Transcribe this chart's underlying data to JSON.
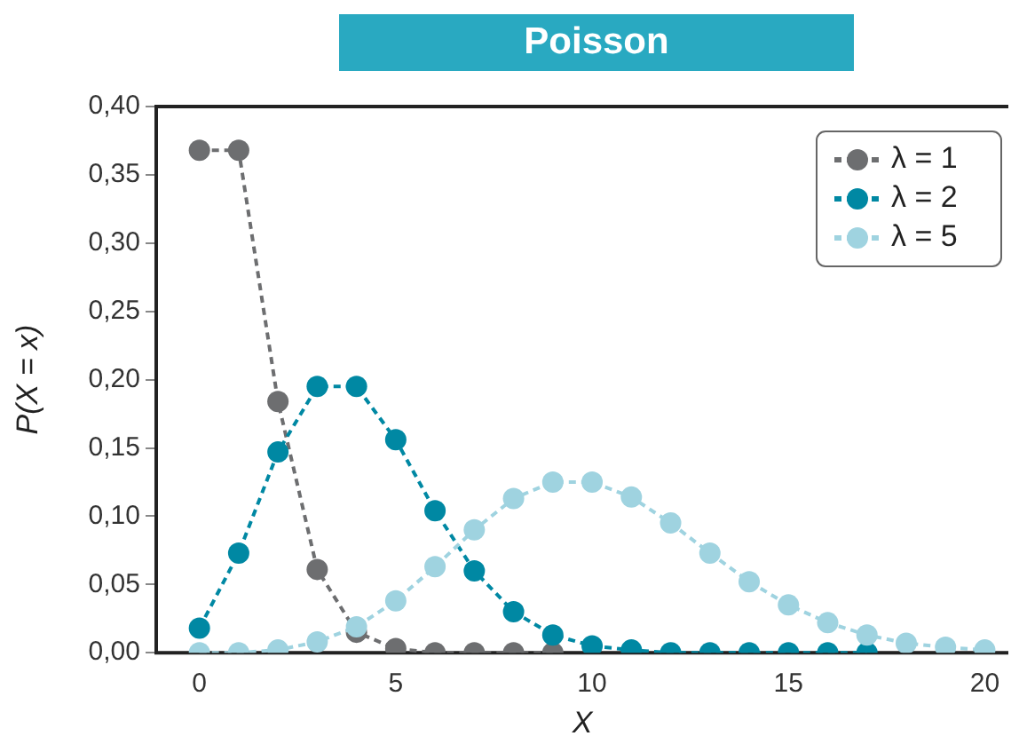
{
  "chart_data": {
    "type": "line",
    "title": "Poisson",
    "xlabel": "X",
    "ylabel": "P(X = x)",
    "xlim": [
      -1.1,
      20.6
    ],
    "xticks": [
      0,
      5,
      10,
      15,
      20
    ],
    "ylim": [
      0,
      0.4
    ],
    "yticks": [
      {
        "value": 0,
        "label": "0,00"
      },
      {
        "value": 0.05,
        "label": "0,05"
      },
      {
        "value": 0.1,
        "label": "0,10"
      },
      {
        "value": 0.15,
        "label": "0,15"
      },
      {
        "value": 0.2,
        "label": "0,20"
      },
      {
        "value": 0.25,
        "label": "0,25"
      },
      {
        "value": 0.3,
        "label": "0,30"
      },
      {
        "value": 0.35,
        "label": "0,35"
      },
      {
        "value": 0.4,
        "label": "0,40"
      }
    ],
    "marker": "circle",
    "line_style": "dashed",
    "legend": "top right",
    "grid": false,
    "series": [
      {
        "name": "λ = 1",
        "color": "#6d6e70",
        "x": [
          0,
          1,
          2,
          3,
          4,
          5,
          6,
          7,
          8,
          9
        ],
        "values": [
          0.368,
          0.368,
          0.184,
          0.061,
          0.015,
          0.003,
          0,
          0,
          0,
          0
        ]
      },
      {
        "name": "λ = 2",
        "color": "#0088a3",
        "x": [
          0,
          1,
          2,
          3,
          4,
          5,
          6,
          7,
          8,
          9,
          10,
          11,
          12,
          13,
          14,
          15,
          16,
          17
        ],
        "values": [
          0.018,
          0.073,
          0.147,
          0.195,
          0.195,
          0.156,
          0.104,
          0.06,
          0.03,
          0.013,
          0.005,
          0.002,
          0,
          0,
          0,
          0,
          0,
          0
        ]
      },
      {
        "name": "λ = 5",
        "color": "#9fd3e0",
        "x": [
          0,
          1,
          2,
          3,
          4,
          5,
          6,
          7,
          8,
          9,
          10,
          11,
          12,
          13,
          14,
          15,
          16,
          17,
          18,
          19,
          20
        ],
        "values": [
          0,
          0,
          0.002,
          0.008,
          0.019,
          0.038,
          0.063,
          0.09,
          0.113,
          0.125,
          0.125,
          0.114,
          0.095,
          0.073,
          0.052,
          0.035,
          0.022,
          0.013,
          0.007,
          0.004,
          0.002
        ]
      }
    ]
  }
}
